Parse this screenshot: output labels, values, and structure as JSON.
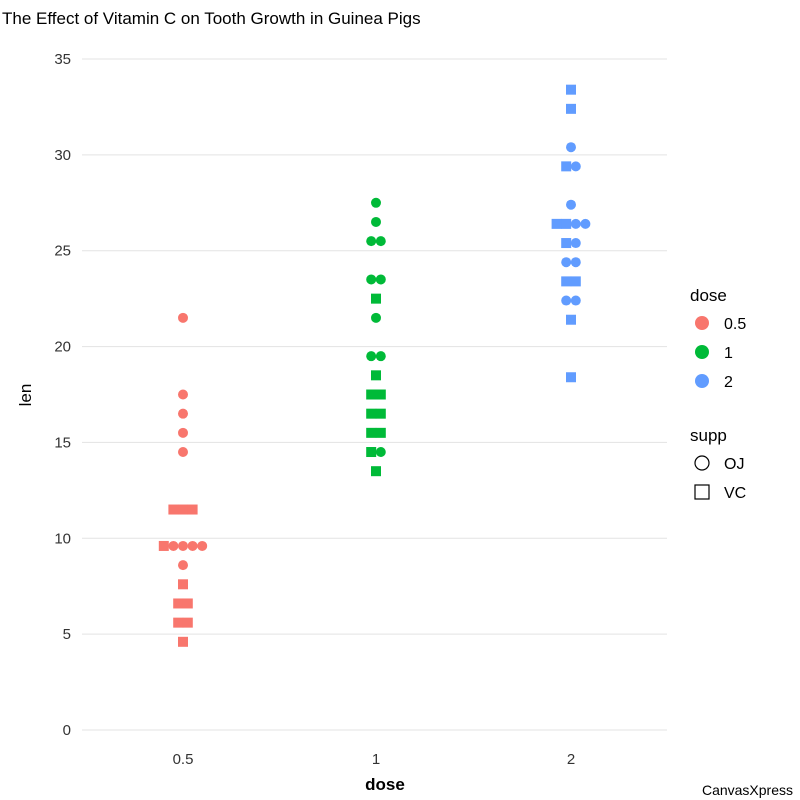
{
  "chart_data": {
    "type": "scatter",
    "title": "The Effect of Vitamin C on Tooth Growth in Guinea Pigs",
    "xlabel": "dose",
    "ylabel": "len",
    "ylim": [
      0,
      35
    ],
    "yticks": [
      "0",
      "5",
      "10",
      "15",
      "20",
      "25",
      "30",
      "35"
    ],
    "categories": [
      "0.5",
      "1",
      "2"
    ],
    "grid": true,
    "legend_placement": "right",
    "legend": {
      "color_title": "dose",
      "color_items": [
        {
          "label": "0.5",
          "color": "#F8766D"
        },
        {
          "label": "1",
          "color": "#00BA38"
        },
        {
          "label": "2",
          "color": "#619CFF"
        }
      ],
      "shape_title": "supp",
      "shape_items": [
        {
          "label": "OJ",
          "shape": "circle"
        },
        {
          "label": "VC",
          "shape": "square"
        }
      ]
    },
    "rows": [
      {
        "dose": "0.5",
        "len": 21.5,
        "supp": [
          "OJ"
        ]
      },
      {
        "dose": "0.5",
        "len": 17.5,
        "supp": [
          "OJ"
        ]
      },
      {
        "dose": "0.5",
        "len": 16.5,
        "supp": [
          "OJ"
        ]
      },
      {
        "dose": "0.5",
        "len": 15.5,
        "supp": [
          "OJ"
        ]
      },
      {
        "dose": "0.5",
        "len": 14.5,
        "supp": [
          "OJ"
        ]
      },
      {
        "dose": "0.5",
        "len": 11.5,
        "supp": [
          "VC",
          "VC",
          "VC"
        ]
      },
      {
        "dose": "0.5",
        "len": 9.6,
        "supp": [
          "VC",
          "OJ",
          "OJ",
          "OJ",
          "OJ"
        ]
      },
      {
        "dose": "0.5",
        "len": 8.6,
        "supp": [
          "OJ"
        ]
      },
      {
        "dose": "0.5",
        "len": 7.6,
        "supp": [
          "VC"
        ]
      },
      {
        "dose": "0.5",
        "len": 6.6,
        "supp": [
          "VC",
          "VC"
        ]
      },
      {
        "dose": "0.5",
        "len": 5.6,
        "supp": [
          "VC",
          "VC"
        ]
      },
      {
        "dose": "0.5",
        "len": 4.6,
        "supp": [
          "VC"
        ]
      },
      {
        "dose": "1",
        "len": 27.5,
        "supp": [
          "OJ"
        ]
      },
      {
        "dose": "1",
        "len": 26.5,
        "supp": [
          "OJ"
        ]
      },
      {
        "dose": "1",
        "len": 25.5,
        "supp": [
          "OJ",
          "OJ"
        ]
      },
      {
        "dose": "1",
        "len": 23.5,
        "supp": [
          "OJ",
          "OJ"
        ]
      },
      {
        "dose": "1",
        "len": 22.5,
        "supp": [
          "VC"
        ]
      },
      {
        "dose": "1",
        "len": 21.5,
        "supp": [
          "OJ"
        ]
      },
      {
        "dose": "1",
        "len": 19.5,
        "supp": [
          "OJ",
          "OJ"
        ]
      },
      {
        "dose": "1",
        "len": 18.5,
        "supp": [
          "VC"
        ]
      },
      {
        "dose": "1",
        "len": 17.5,
        "supp": [
          "VC",
          "VC"
        ]
      },
      {
        "dose": "1",
        "len": 16.5,
        "supp": [
          "VC",
          "VC"
        ]
      },
      {
        "dose": "1",
        "len": 15.5,
        "supp": [
          "VC",
          "VC"
        ]
      },
      {
        "dose": "1",
        "len": 14.5,
        "supp": [
          "VC",
          "OJ"
        ]
      },
      {
        "dose": "1",
        "len": 13.5,
        "supp": [
          "VC"
        ]
      },
      {
        "dose": "2",
        "len": 33.4,
        "supp": [
          "VC"
        ]
      },
      {
        "dose": "2",
        "len": 32.4,
        "supp": [
          "VC"
        ]
      },
      {
        "dose": "2",
        "len": 30.4,
        "supp": [
          "OJ"
        ]
      },
      {
        "dose": "2",
        "len": 29.4,
        "supp": [
          "VC",
          "OJ"
        ]
      },
      {
        "dose": "2",
        "len": 27.4,
        "supp": [
          "OJ"
        ]
      },
      {
        "dose": "2",
        "len": 26.4,
        "supp": [
          "VC",
          "VC",
          "OJ",
          "OJ"
        ]
      },
      {
        "dose": "2",
        "len": 25.4,
        "supp": [
          "VC",
          "OJ"
        ]
      },
      {
        "dose": "2",
        "len": 24.4,
        "supp": [
          "OJ",
          "OJ"
        ]
      },
      {
        "dose": "2",
        "len": 23.4,
        "supp": [
          "VC",
          "VC"
        ]
      },
      {
        "dose": "2",
        "len": 22.4,
        "supp": [
          "OJ",
          "OJ"
        ]
      },
      {
        "dose": "2",
        "len": 21.4,
        "supp": [
          "VC"
        ]
      },
      {
        "dose": "2",
        "len": 18.4,
        "supp": [
          "VC"
        ]
      }
    ]
  },
  "watermark": "CanvasXpress"
}
